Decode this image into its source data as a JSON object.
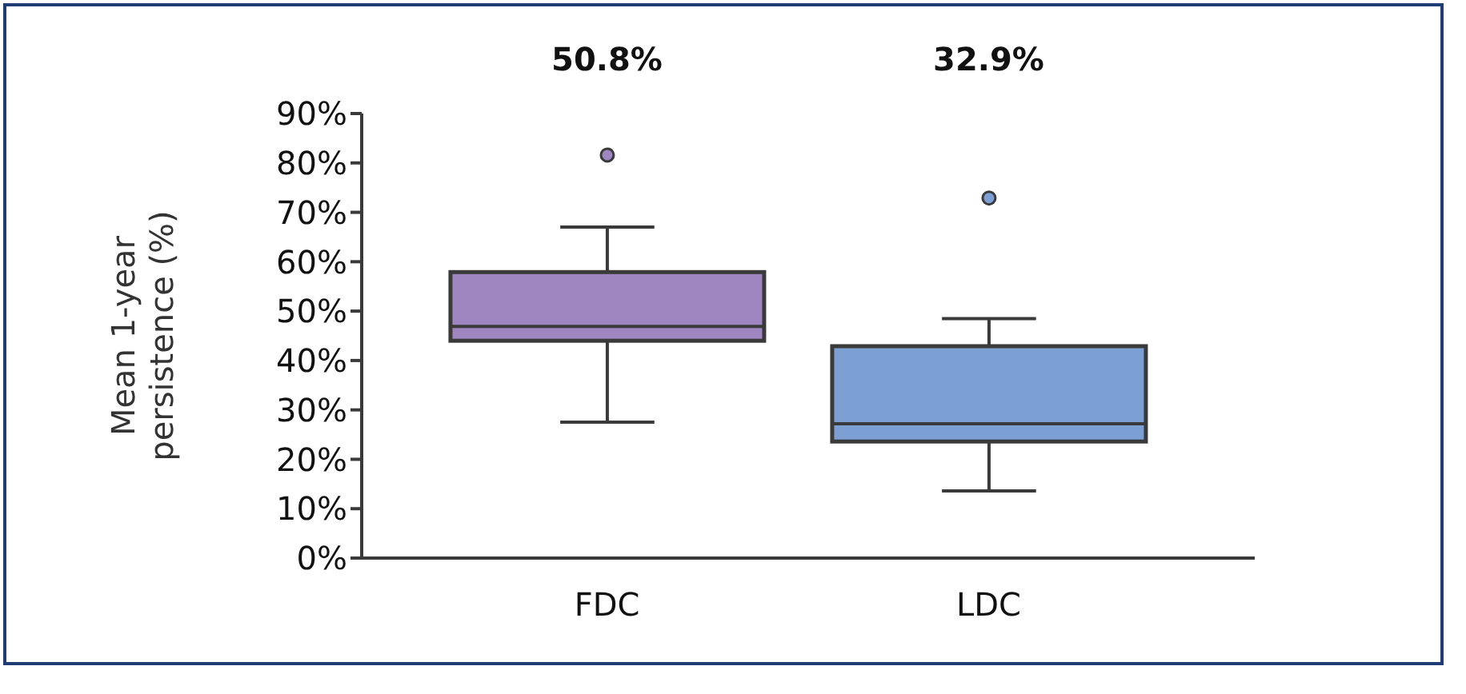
{
  "chart_data": {
    "type": "box",
    "ylabel": "Mean 1-year persistence (%)",
    "categories": [
      "FDC",
      "LDC"
    ],
    "colors": [
      "#9f86c0",
      "#7c9fd4"
    ],
    "boxes": [
      {
        "low": 27.5,
        "q1": 44.0,
        "median": 46.9,
        "q3": 57.9,
        "high": 67.0,
        "outliers": [
          81.6
        ]
      },
      {
        "low": 13.6,
        "q1": 23.6,
        "median": 27.2,
        "q3": 42.9,
        "high": 48.5,
        "outliers": [
          72.9
        ]
      }
    ],
    "ylim": [
      0,
      90
    ],
    "yticks": [
      {
        "value": 0,
        "label": "0%"
      },
      {
        "value": 10,
        "label": "10%"
      },
      {
        "value": 20,
        "label": "20%"
      },
      {
        "value": 30,
        "label": "30%"
      },
      {
        "value": 40,
        "label": "40%"
      },
      {
        "value": 50,
        "label": "50%"
      },
      {
        "value": 60,
        "label": "60%"
      },
      {
        "value": 70,
        "label": "70%"
      },
      {
        "value": 80,
        "label": "80%"
      },
      {
        "value": 90,
        "label": "90%"
      }
    ],
    "annotations": [
      "50.8%",
      "32.9%"
    ],
    "grid": false
  }
}
